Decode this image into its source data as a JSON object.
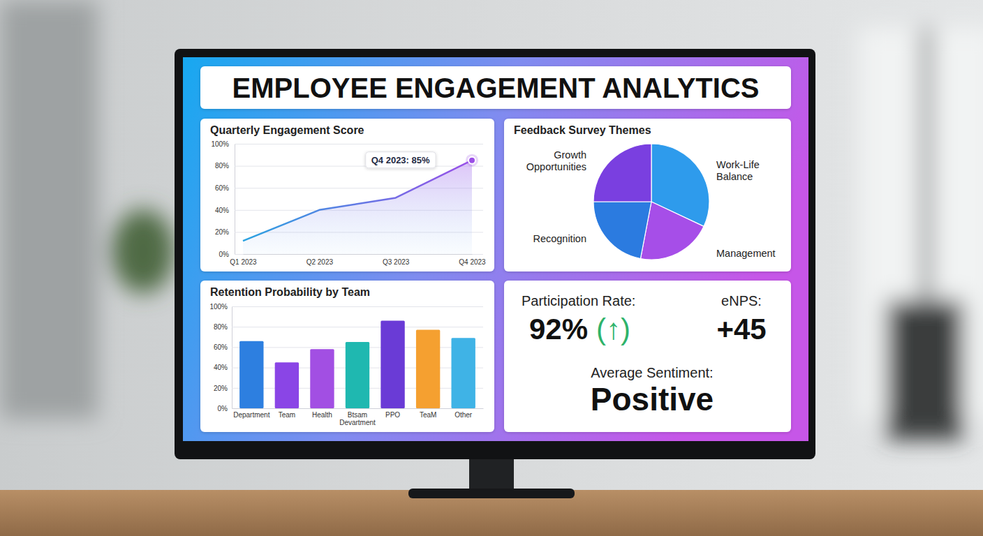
{
  "title": "EMPLOYEE ENGAGEMENT ANALYTICS",
  "chart_data": [
    {
      "type": "line",
      "title": "Quarterly Engagement Score",
      "categories": [
        "Q1 2023",
        "Q2 2023",
        "Q3 2023",
        "Q4 2023"
      ],
      "values": [
        12,
        40,
        51,
        85
      ],
      "annotation": "Q4 2023: 85%",
      "ylim": [
        0,
        100
      ],
      "yticks": [
        {
          "value": 0,
          "label": "0%"
        },
        {
          "value": 20,
          "label": "20%"
        },
        {
          "value": 40,
          "label": "40%"
        },
        {
          "value": 60,
          "label": "60%"
        },
        {
          "value": 80,
          "label": "80%"
        },
        {
          "value": 100,
          "label": "100%"
        }
      ],
      "grid": true
    },
    {
      "type": "pie",
      "title": "Feedback Survey Themes",
      "categories": [
        "Work-Life Balance",
        "Management",
        "Recognition",
        "Growth Opportunities"
      ],
      "values": [
        32,
        21,
        22,
        25
      ],
      "colors": [
        "#2e9bec",
        "#a64ee8",
        "#2b7be0",
        "#7a3fe0"
      ]
    },
    {
      "type": "bar",
      "title": "Retention Probability by Team",
      "categories": [
        "Department",
        "Team",
        "Health",
        "Btsam Devartment",
        "PPO",
        "TeaM",
        "Other"
      ],
      "values": [
        66,
        45,
        58,
        65,
        86,
        77,
        69
      ],
      "colors": [
        "#2d7fe0",
        "#8a45e6",
        "#a24fe3",
        "#1fb8b0",
        "#6a3bd6",
        "#f5a030",
        "#3fb3e6"
      ],
      "ylim": [
        0,
        100
      ],
      "yticks": [
        {
          "value": 0,
          "label": "0%"
        },
        {
          "value": 20,
          "label": "20%"
        },
        {
          "value": 40,
          "label": "40%"
        },
        {
          "value": 60,
          "label": "60%"
        },
        {
          "value": 80,
          "label": "80%"
        },
        {
          "value": 100,
          "label": "100%"
        }
      ],
      "grid": true
    }
  ],
  "kpis": [
    {
      "label": "Participation Rate:",
      "value": "92%",
      "trend": "(↑)"
    },
    {
      "label": "eNPS:",
      "value": "+45"
    },
    {
      "label": "Average Sentiment:",
      "value": "Positive"
    }
  ]
}
